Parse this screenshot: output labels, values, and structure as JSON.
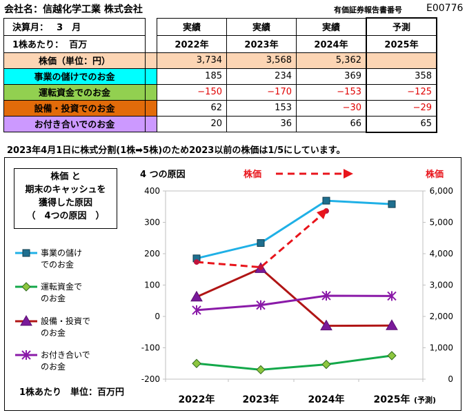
{
  "header": {
    "company": "会社名：信越化学工業 株式会社",
    "edinet_label": "有価証券報告書番号",
    "edinet_code": "E00776",
    "fiscal_month_label": "決算月：",
    "fiscal_month_value": "3　月",
    "unit_label": "1株あたり：",
    "unit_value": "百万"
  },
  "table": {
    "columns": [
      {
        "kind": "実績",
        "year": "2022年"
      },
      {
        "kind": "実績",
        "year": "2023年"
      },
      {
        "kind": "実績",
        "year": "2024年"
      },
      {
        "kind": "予測",
        "year": "2025年"
      }
    ],
    "rows": [
      {
        "label": "株価（単位：円）",
        "color": "#fcd5b4",
        "values": [
          "3,734",
          "3,568",
          "5,362",
          ""
        ]
      },
      {
        "label": "事業の儲けでのお金",
        "color": "#00ffff",
        "values": [
          "185",
          "234",
          "369",
          "358"
        ]
      },
      {
        "label": "運転資金でのお金",
        "color": "#92d050",
        "values": [
          "−150",
          "−170",
          "−153",
          "−125"
        ]
      },
      {
        "label": "設備・投資でのお金",
        "color": "#e26b0a",
        "values": [
          "62",
          "153",
          "−30",
          "−29"
        ]
      },
      {
        "label": "お付き合いでのお金",
        "color": "#cc99ff",
        "values": [
          "20",
          "36",
          "66",
          "65"
        ]
      }
    ]
  },
  "note": "2023年4月1日に株式分割(1株➡5株)のため2023以前の株価は1/5にしています。",
  "chart_box": {
    "desc_lines": [
      "株価 と",
      "期末のキャッシュを",
      "獲得した原因",
      "（　4つの原因　）"
    ],
    "four_causes": "4 つの原因",
    "stock_arrow_label": "株価",
    "stock_right_label": "株価",
    "unit_footer": "1株あたり　単位：百万円",
    "forecast_suffix": "(予測)"
  },
  "chart_data": {
    "type": "line",
    "categories": [
      "2022年",
      "2023年",
      "2024年",
      "2025年"
    ],
    "y_left": {
      "min": -200,
      "max": 400,
      "step": 100,
      "ticks": [
        "400",
        "300",
        "200",
        "100",
        "0",
        "-100",
        "-200"
      ]
    },
    "y_right": {
      "min": 0,
      "max": 6000,
      "step": 1000,
      "ticks": [
        "6,000",
        "5,000",
        "4,000",
        "3,000",
        "2,000",
        "1,000",
        "0"
      ]
    },
    "series": [
      {
        "name": "事業の儲けでのお金",
        "legend": [
          "事業の儲け",
          "でのお金"
        ],
        "color": "#1fb0e6",
        "marker": "square",
        "values": [
          185,
          234,
          369,
          358
        ]
      },
      {
        "name": "運転資金でのお金",
        "legend": [
          "運転資金で",
          "のお金"
        ],
        "color": "#13a84a",
        "marker": "diamond",
        "values": [
          -150,
          -170,
          -153,
          -125
        ]
      },
      {
        "name": "設備・投資でのお金",
        "legend": [
          "設備・投資で",
          "のお金"
        ],
        "color": "#b01515",
        "marker": "triangle",
        "values": [
          62,
          153,
          -30,
          -29
        ]
      },
      {
        "name": "お付き合いでのお金",
        "legend": [
          "お付き合いで",
          "のお金"
        ],
        "color": "#8a1aa8",
        "marker": "star",
        "values": [
          20,
          36,
          66,
          65
        ]
      }
    ],
    "stock_series": {
      "name": "株価",
      "axis": "right",
      "color": "#e8141b",
      "dashed": true,
      "values": [
        3734,
        3568,
        5362
      ]
    }
  }
}
